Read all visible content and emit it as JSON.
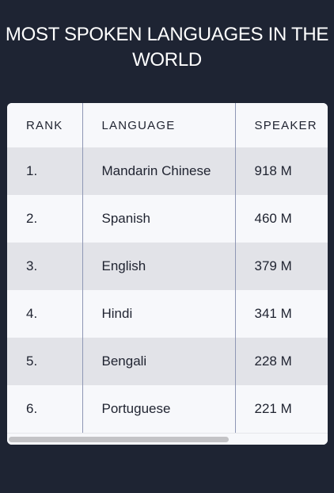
{
  "page": {
    "title": "MOST SPOKEN LANGUAGES IN THE WORLD"
  },
  "table": {
    "headers": {
      "rank": "RANK",
      "language": "LANGUAGE",
      "speakers": "SPEAKER"
    },
    "rows": [
      {
        "rank": "1.",
        "language": "Mandarin Chinese",
        "speakers": "918 M"
      },
      {
        "rank": "2.",
        "language": "Spanish",
        "speakers": "460 M"
      },
      {
        "rank": "3.",
        "language": "English",
        "speakers": "379 M"
      },
      {
        "rank": "4.",
        "language": "Hindi",
        "speakers": "341 M"
      },
      {
        "rank": "5.",
        "language": "Bengali",
        "speakers": "228 M"
      },
      {
        "rank": "6.",
        "language": "Portuguese",
        "speakers": "221 M"
      }
    ]
  },
  "colors": {
    "page_background": "#1e2433",
    "table_background": "#f7f8fb",
    "striped_row": "#e2e3e8",
    "column_divider": "#8f97b4"
  }
}
